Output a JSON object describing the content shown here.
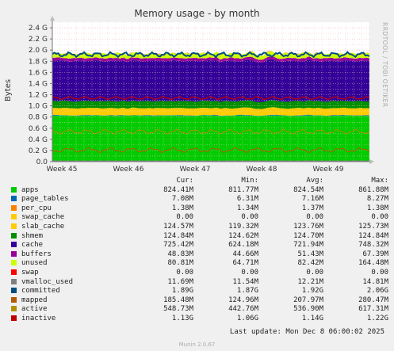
{
  "chart_data": {
    "type": "area",
    "title": "Memory usage - by month",
    "ylabel": "Bytes",
    "ylim": [
      0,
      2.5
    ],
    "yticks": [
      "0.0",
      "0.2 G",
      "0.4 G",
      "0.6 G",
      "0.8 G",
      "1.0 G",
      "1.2 G",
      "1.4 G",
      "1.6 G",
      "1.8 G",
      "2.0 G",
      "2.2 G",
      "2.4 G"
    ],
    "xticks": [
      "Week 45",
      "Week 46",
      "Week 47",
      "Week 48",
      "Week 49"
    ],
    "grid": true,
    "columns": [
      "Cur:",
      "Min:",
      "Avg:",
      "Max:"
    ],
    "series": [
      {
        "name": "apps",
        "color": "#00cc00",
        "cur": "824.41M",
        "min": "811.77M",
        "avg": "824.54M",
        "max": "861.88M",
        "value_gb": 0.825
      },
      {
        "name": "page_tables",
        "color": "#0066b3",
        "cur": "7.08M",
        "min": "6.31M",
        "avg": "7.16M",
        "max": "8.27M",
        "value_gb": 0.007
      },
      {
        "name": "per_cpu",
        "color": "#ff8000",
        "cur": "1.38M",
        "min": "1.34M",
        "avg": "1.37M",
        "max": "1.38M",
        "value_gb": 0.001
      },
      {
        "name": "swap_cache",
        "color": "#ffcc00",
        "cur": "0.00",
        "min": "0.00",
        "avg": "0.00",
        "max": "0.00",
        "value_gb": 0.0
      },
      {
        "name": "slab_cache",
        "color": "#ffcc00",
        "cur": "124.57M",
        "min": "119.32M",
        "avg": "123.76M",
        "max": "125.73M",
        "value_gb": 0.124
      },
      {
        "name": "shmem",
        "color": "#008f00",
        "cur": "124.84M",
        "min": "124.62M",
        "avg": "124.70M",
        "max": "124.84M",
        "value_gb": 0.125
      },
      {
        "name": "cache",
        "color": "#330099",
        "cur": "725.42M",
        "min": "624.18M",
        "avg": "721.94M",
        "max": "748.32M",
        "value_gb": 0.722
      },
      {
        "name": "buffers",
        "color": "#990099",
        "cur": "48.83M",
        "min": "44.66M",
        "avg": "51.43M",
        "max": "67.39M",
        "value_gb": 0.051
      },
      {
        "name": "unused",
        "color": "#ccff00",
        "cur": "80.81M",
        "min": "64.71M",
        "avg": "82.42M",
        "max": "164.48M",
        "value_gb": 0.082
      },
      {
        "name": "swap",
        "color": "#ff0000",
        "cur": "0.00",
        "min": "0.00",
        "avg": "0.00",
        "max": "0.00",
        "value_gb": 0.0
      },
      {
        "name": "vmalloc_used",
        "color": "#808080",
        "cur": "11.69M",
        "min": "11.54M",
        "avg": "12.21M",
        "max": "14.81M",
        "value_gb": 0.012
      },
      {
        "name": "committed",
        "color": "#004d80",
        "cur": "1.89G",
        "min": "1.87G",
        "avg": "1.92G",
        "max": "2.06G",
        "value_gb": 1.92
      },
      {
        "name": "mapped",
        "color": "#b35a00",
        "cur": "185.48M",
        "min": "124.96M",
        "avg": "207.97M",
        "max": "280.47M",
        "value_gb": 0.208
      },
      {
        "name": "active",
        "color": "#b38f00",
        "cur": "548.73M",
        "min": "442.76M",
        "avg": "536.90M",
        "max": "617.31M",
        "value_gb": 0.537
      },
      {
        "name": "inactive",
        "color": "#c00000",
        "cur": "1.13G",
        "min": "1.06G",
        "avg": "1.14G",
        "max": "1.22G",
        "value_gb": 1.14
      }
    ]
  },
  "vendor_text": "RRDTOOL / TOBI OETIKER",
  "last_update": "Last update: Mon Dec  8 06:00:02 2025",
  "footer": "Munin 2.0.67"
}
